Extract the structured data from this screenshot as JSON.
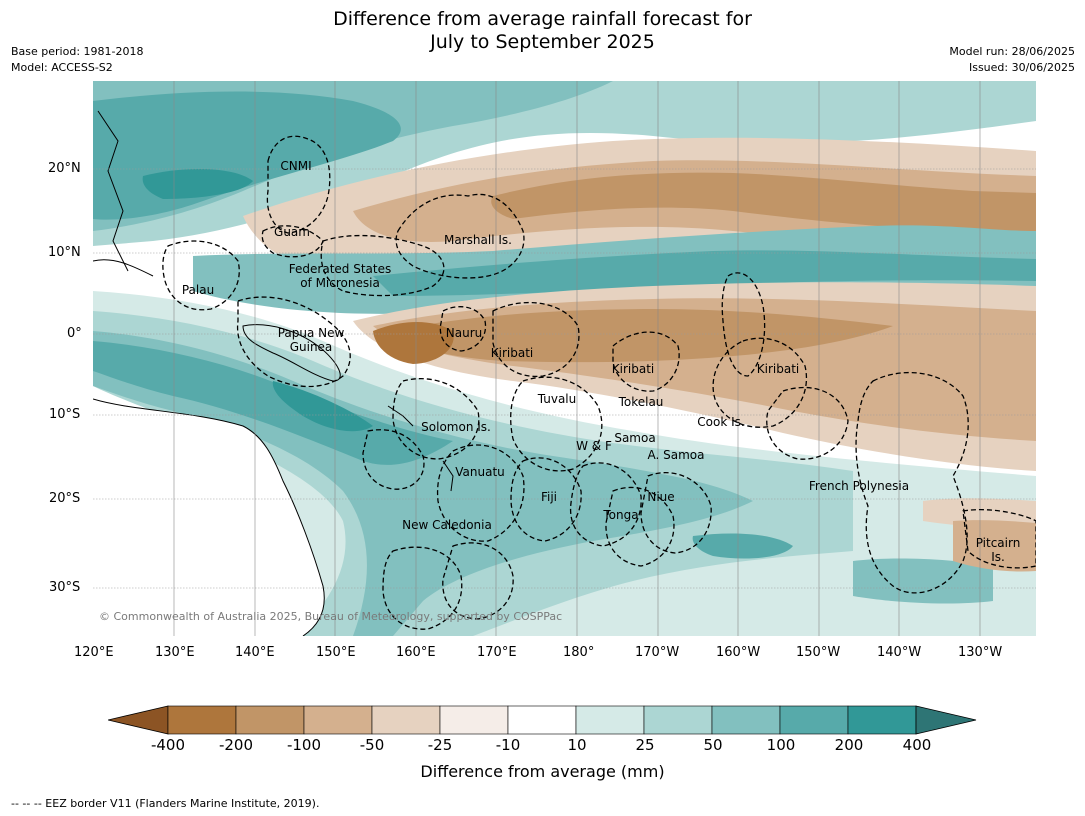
{
  "title_line1": "Difference from average rainfall forecast for",
  "title_line2": "July to September 2025",
  "meta": {
    "base_period": "Base period: 1981-2018",
    "model": "Model: ACCESS-S2",
    "model_run": "Model run: 28/06/2025",
    "issued": "Issued: 30/06/2025"
  },
  "lat_labels": [
    "20°N",
    "10°N",
    "0°",
    "10°S",
    "20°S",
    "30°S"
  ],
  "lon_labels": [
    "120°E",
    "130°E",
    "140°E",
    "150°E",
    "160°E",
    "170°E",
    "180°",
    "170°W",
    "160°W",
    "150°W",
    "140°W",
    "130°W"
  ],
  "places": [
    {
      "name": "CNMI"
    },
    {
      "name": "Guam"
    },
    {
      "name": "Marshall Is."
    },
    {
      "name": "Federated States\nof Micronesia"
    },
    {
      "name": "Palau"
    },
    {
      "name": "Papua New\nGuinea"
    },
    {
      "name": "Nauru"
    },
    {
      "name": "Kiribati"
    },
    {
      "name": "Kiribati"
    },
    {
      "name": "Kiribati"
    },
    {
      "name": "Tuvalu"
    },
    {
      "name": "Tokelau"
    },
    {
      "name": "Cook Is."
    },
    {
      "name": "Solomon Is."
    },
    {
      "name": "Samoa"
    },
    {
      "name": "W & F"
    },
    {
      "name": "A. Samoa"
    },
    {
      "name": "Vanuatu"
    },
    {
      "name": "Fiji"
    },
    {
      "name": "Niue"
    },
    {
      "name": "Tonga"
    },
    {
      "name": "French Polynesia"
    },
    {
      "name": "New Caledonia"
    },
    {
      "name": "Pitcairn\nIs."
    }
  ],
  "copyright": "© Commonwealth of Australia 2025, Bureau of Meteorology, supported by COSPPac",
  "colorbar": {
    "ticks": [
      "-400",
      "-200",
      "-100",
      "-50",
      "-25",
      "-10",
      "10",
      "25",
      "50",
      "100",
      "200",
      "400"
    ],
    "colors": [
      "#8c5424",
      "#ae763c",
      "#c19567",
      "#d4b08e",
      "#e6d2c0",
      "#f5ede8",
      "#ffffff",
      "#d5eae7",
      "#acd6d3",
      "#82c0bf",
      "#57aaaa",
      "#319897",
      "#2e7575"
    ],
    "label": "Difference from average (mm)"
  },
  "footer": "--  --  -- EEZ border V11 (Flanders Marine Institute, 2019)."
}
